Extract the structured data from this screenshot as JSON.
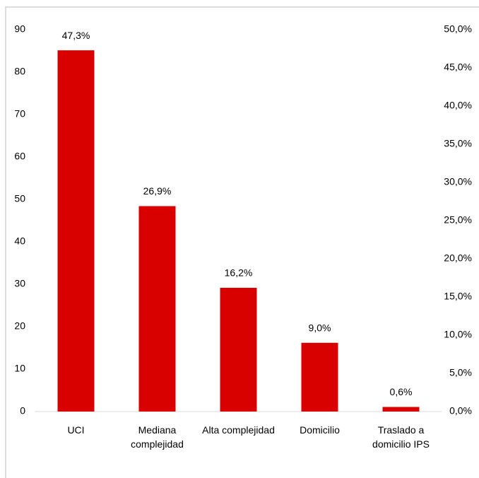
{
  "chart_data": {
    "type": "bar",
    "categories": [
      "UCI",
      "Mediana complejidad",
      "Alta complejidad",
      "Domicilio",
      "Traslado a domicilio IPS"
    ],
    "series": [
      {
        "color": "#d90000",
        "axis": "y2",
        "values": [
          47.3,
          26.9,
          16.2,
          9.0,
          0.6
        ],
        "value_labels": [
          "47,3%",
          "26,9%",
          "16,2%",
          "9,0%",
          "0,6%"
        ]
      }
    ],
    "ylim": [
      0,
      90
    ],
    "yticks": [
      0,
      10,
      20,
      30,
      40,
      50,
      60,
      70,
      80,
      90
    ],
    "y2lim": [
      0,
      50
    ],
    "y2ticks": [
      {
        "value": 0,
        "label": "0,0%"
      },
      {
        "value": 5,
        "label": "5,0%"
      },
      {
        "value": 10,
        "label": "10,0%"
      },
      {
        "value": 15,
        "label": "15,0%"
      },
      {
        "value": 20,
        "label": "20,0%"
      },
      {
        "value": 25,
        "label": "25,0%"
      },
      {
        "value": 30,
        "label": "30,0%"
      },
      {
        "value": 35,
        "label": "35,0%"
      },
      {
        "value": 40,
        "label": "40,0%"
      },
      {
        "value": 45,
        "label": "45,0%"
      },
      {
        "value": 50,
        "label": "50,0%"
      }
    ]
  }
}
